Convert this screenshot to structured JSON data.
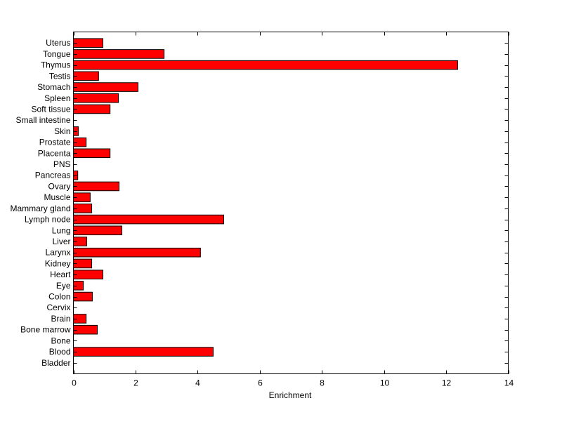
{
  "chart_data": {
    "type": "bar",
    "orientation": "horizontal",
    "title": "",
    "xlabel": "Enrichment",
    "ylabel": "",
    "xlim": [
      0,
      14
    ],
    "xticks": [
      0,
      2,
      4,
      6,
      8,
      10,
      12,
      14
    ],
    "grid": false,
    "bar_color": "#ff0000",
    "edge_color": "#000000",
    "categories": [
      "Bladder",
      "Blood",
      "Bone",
      "Bone marrow",
      "Brain",
      "Cervix",
      "Colon",
      "Eye",
      "Heart",
      "Kidney",
      "Larynx",
      "Liver",
      "Lung",
      "Lymph node",
      "Mammary gland",
      "Muscle",
      "Ovary",
      "Pancreas",
      "PNS",
      "Placenta",
      "Prostate",
      "Skin",
      "Small intestine",
      "Soft tissue",
      "Spleen",
      "Stomach",
      "Testis",
      "Thymus",
      "Tongue",
      "Uterus"
    ],
    "values": [
      0,
      4.5,
      0,
      0.77,
      0.41,
      0,
      0.61,
      0.32,
      0.95,
      0.59,
      4.09,
      0.43,
      1.56,
      4.84,
      0.59,
      0.54,
      1.47,
      0.14,
      0,
      1.18,
      0.41,
      0.16,
      0,
      1.18,
      1.45,
      2.08,
      0.81,
      12.37,
      2.92,
      0.95
    ]
  }
}
